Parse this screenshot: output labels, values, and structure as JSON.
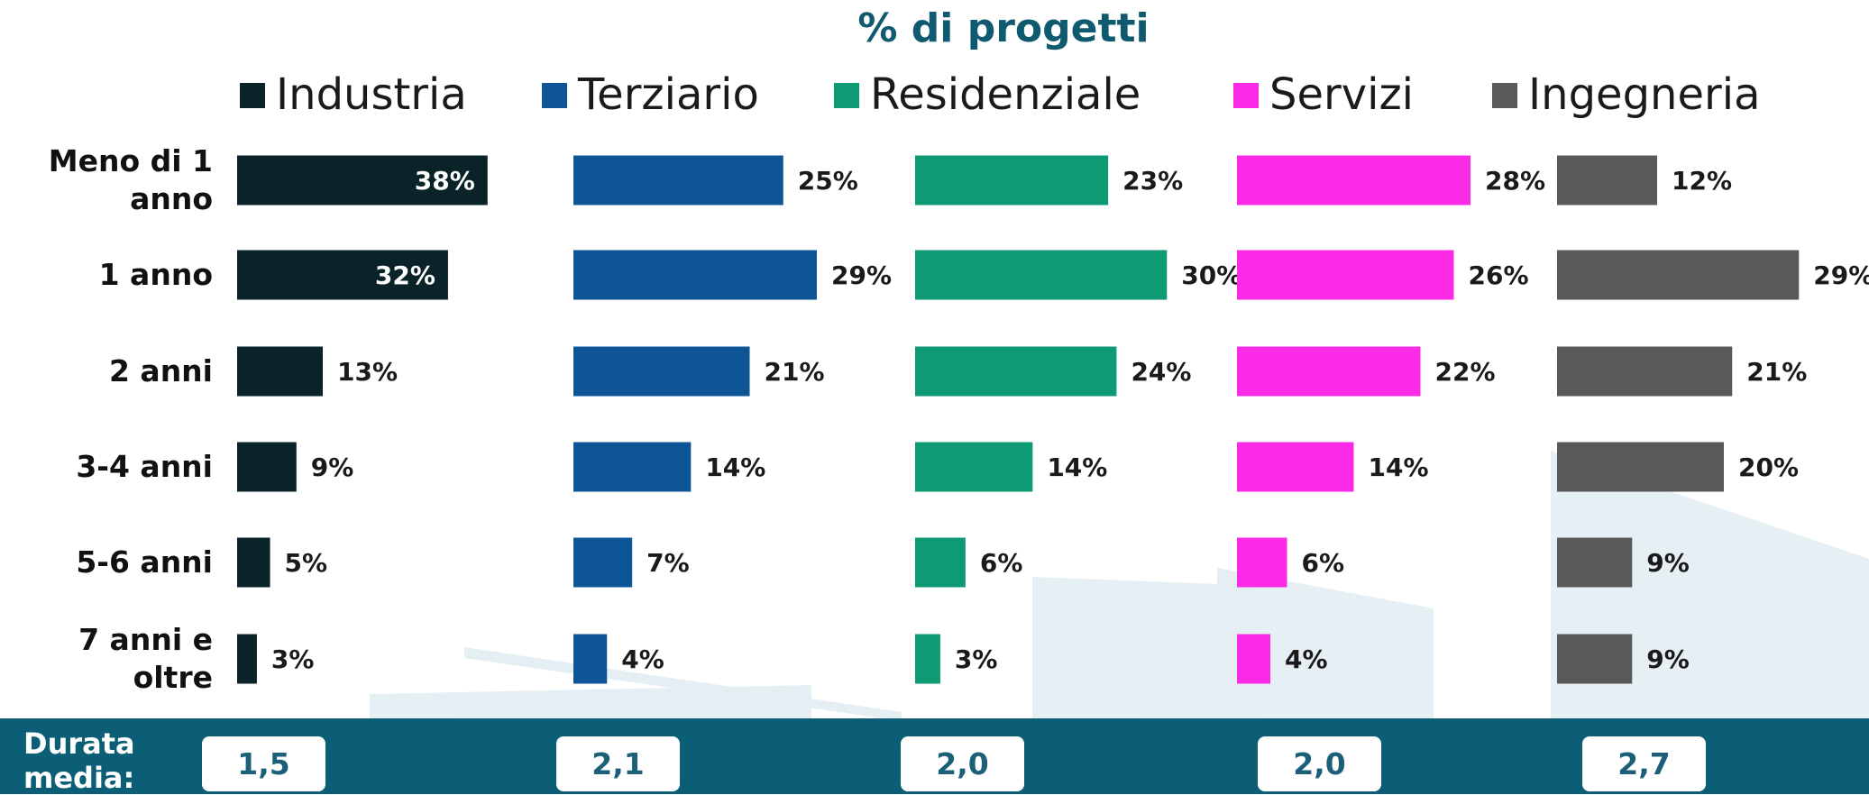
{
  "chart_data": {
    "type": "bar",
    "title": "% di progetti",
    "categories": [
      "Meno di 1 anno",
      "1 anno",
      "2 anni",
      "3-4 anni",
      "5-6 anni",
      "7 anni e oltre"
    ],
    "series": [
      {
        "name": "Industria",
        "color": "#0a2329",
        "values": [
          38,
          32,
          13,
          9,
          5,
          3
        ],
        "value_labels": [
          "38%",
          "32%",
          "13%",
          "9%",
          "5%",
          "3%"
        ]
      },
      {
        "name": "Terziario",
        "color": "#0d5597",
        "values": [
          25,
          29,
          21,
          14,
          7,
          4
        ],
        "value_labels": [
          "25%",
          "29%",
          "21%",
          "14%",
          "7%",
          "4%"
        ]
      },
      {
        "name": "Residenziale",
        "color": "#0e9a73",
        "values": [
          23,
          30,
          24,
          14,
          6,
          3
        ],
        "value_labels": [
          "23%",
          "30%",
          "24%",
          "14%",
          "6%",
          "3%"
        ]
      },
      {
        "name": "Servizi",
        "color": "#fa2ae6",
        "values": [
          28,
          26,
          22,
          14,
          6,
          4
        ],
        "value_labels": [
          "28%",
          "26%",
          "22%",
          "14%",
          "6%",
          "4%"
        ]
      },
      {
        "name": "Ingegneria",
        "color": "#595959",
        "values": [
          12,
          29,
          21,
          20,
          9,
          9
        ],
        "value_labels": [
          "12%",
          "29%",
          "21%",
          "20%",
          "9%",
          "9%"
        ]
      }
    ],
    "footer": {
      "label": "Durata media:",
      "values": [
        "1,5",
        "2,1",
        "2,0",
        "2,0",
        "2,7"
      ]
    }
  }
}
